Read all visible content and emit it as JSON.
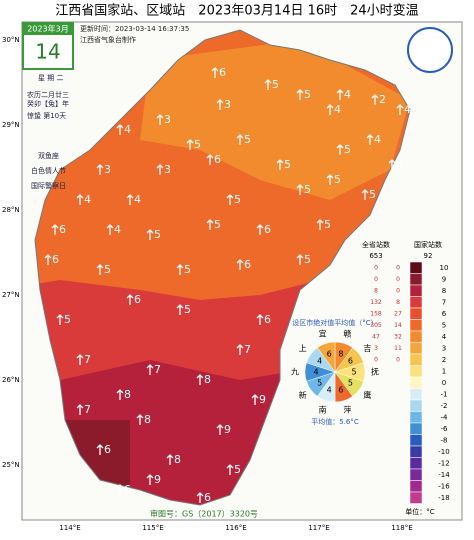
{
  "header": {
    "title": "江西省国家站、区域站　2023年03月14日 16时　24小时变温",
    "updated": "更新时间：2023-03-14 16:37:35",
    "maker": "江西省气象台制作"
  },
  "calendar": {
    "month": "2023年3月",
    "day": "14",
    "weekday": "星 期 二",
    "lunar": "农历二月廿三",
    "year": "癸卯【兔】年",
    "term": "惊蛰 第10天",
    "zodiac": "双鱼座",
    "festival1": "白色情人节",
    "festival2": "国际警察日"
  },
  "axes": {
    "lat": [
      "30°N",
      "29°N",
      "28°N",
      "27°N",
      "26°N",
      "25°N"
    ],
    "lon": [
      "114°E",
      "115°E",
      "116°E",
      "117°E",
      "118°E"
    ]
  },
  "stations": [
    6,
    5,
    5,
    4,
    2,
    3,
    4,
    4,
    4,
    3,
    5,
    5,
    4,
    5,
    4,
    3,
    3,
    6,
    5,
    5,
    4,
    4,
    5,
    5,
    5,
    6,
    4,
    5,
    5,
    6,
    5,
    6,
    5,
    5,
    6,
    5,
    5,
    6,
    5,
    6,
    7,
    7,
    7,
    8,
    8,
    9,
    7,
    8,
    9,
    6,
    8,
    5,
    6,
    9,
    6
  ],
  "legend": {
    "all_title": "全省站数",
    "nat_title": "国家站数",
    "all_total": 653,
    "nat_total": 92,
    "labels": [
      10,
      9,
      8,
      7,
      6,
      5,
      4,
      3,
      2,
      1,
      0,
      -1,
      -2,
      -4,
      -6,
      -8,
      -10,
      -12,
      -14,
      -16,
      -18
    ],
    "colors": [
      "#5c0b1a",
      "#8b1a2b",
      "#b5213a",
      "#d93a3a",
      "#e6502d",
      "#ee6a2a",
      "#f28a2e",
      "#f5a63a",
      "#f7c44d",
      "#fbe27a",
      "#fff7c0",
      "#d8eef7",
      "#a9d8f0",
      "#6fb7e8",
      "#3e8fd8",
      "#2a5bbf",
      "#3a3aa8",
      "#5a2aa0",
      "#7a2a98",
      "#a02a90",
      "#c03a90"
    ],
    "all_counts": [
      0,
      0,
      8,
      132,
      158,
      305,
      47,
      3,
      0
    ],
    "nat_counts": [
      0,
      0,
      0,
      8,
      27,
      14,
      32,
      11,
      0
    ],
    "unit": "单位：°C"
  },
  "pie": {
    "title": "设区市绝对值平均值（°C）",
    "average": "平均值：5.6°C",
    "cities": [
      "赣",
      "吉",
      "抚",
      "鹰",
      "萍",
      "南",
      "新",
      "九",
      "上",
      "宜"
    ],
    "values": [
      8,
      6,
      5,
      5,
      6,
      4,
      5,
      4,
      4,
      6
    ],
    "colors": [
      "#f28a2e",
      "#f7c44d",
      "#fbe27a",
      "#e6e060",
      "#ee6a2a",
      "#d8eef7",
      "#6fb7e8",
      "#3e8fd8",
      "#a9d8f0",
      "#f5a63a"
    ]
  },
  "footer": "审图号：GS（2017）3320号"
}
